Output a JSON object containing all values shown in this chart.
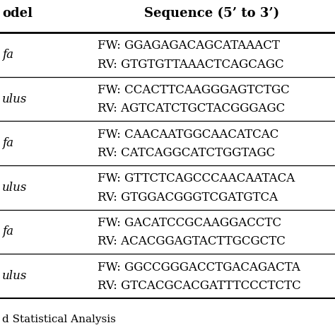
{
  "header_col1": "odel",
  "header_col2": "Sequence (5’ to 3’)",
  "rows": [
    {
      "model": "fa",
      "sequences": [
        "FW: GGAGAGACAGCATAAACT",
        "RV: GTGTGTTAAACTCAGCAGC"
      ]
    },
    {
      "model": "ulus",
      "sequences": [
        "FW: CCACTTCAAGGGAGTCTGC",
        "RV: AGTCATCTGCTACGGGAGC"
      ]
    },
    {
      "model": "fa",
      "sequences": [
        "FW: CAACAATGGCAACATCAC",
        "RV: CATCAGGCATCTGGTAGC"
      ]
    },
    {
      "model": "ulus",
      "sequences": [
        "FW: GTTCTCAGCCCAACAATACA",
        "RV: GTGGACGGGTCGATGTCA"
      ]
    },
    {
      "model": "fa",
      "sequences": [
        "FW: GACATCCGCAAGGACCTC",
        "RV: ACACGGAGTACTTGCGCTC"
      ]
    },
    {
      "model": "ulus",
      "sequences": [
        "FW: GGCCGGGACCTGACAGACTA",
        "RV: GTCACGCACGATTTCCCTCTC"
      ]
    }
  ],
  "footer_text": "d Statistical Analysis",
  "background_color": "#ffffff",
  "text_color": "#000000",
  "header_fontsize": 13,
  "body_fontsize": 12,
  "footer_fontsize": 11
}
